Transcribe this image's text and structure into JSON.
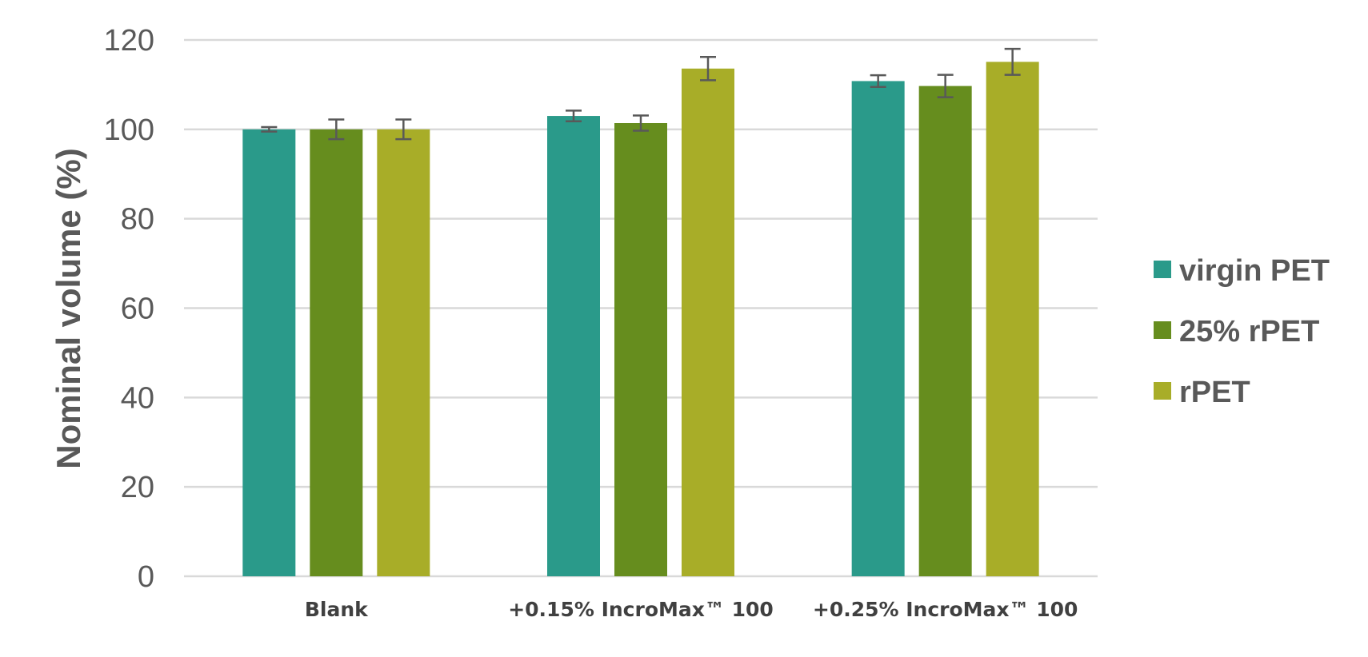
{
  "chart_data": {
    "type": "bar",
    "title": "",
    "xlabel": "",
    "ylabel": "Nominal volume (%)",
    "ylim": [
      0,
      120
    ],
    "yticks": [
      0,
      20,
      40,
      60,
      80,
      100,
      120
    ],
    "grid": true,
    "legend_position": "right",
    "categories": [
      "Blank",
      "+0.15% IncroMax™ 100",
      "+0.25% IncroMax™ 100"
    ],
    "series": [
      {
        "name": "virgin PET",
        "color": "#2a9a8a",
        "values": [
          100,
          103,
          110.8
        ],
        "errors": [
          0.5,
          1.2,
          1.3
        ]
      },
      {
        "name": "25% rPET",
        "color": "#668d1e",
        "values": [
          100,
          101.4,
          109.7
        ],
        "errors": [
          2.2,
          1.7,
          2.5
        ]
      },
      {
        "name": "rPET",
        "color": "#a8ad28",
        "values": [
          100,
          113.6,
          115.1
        ],
        "errors": [
          2.2,
          2.6,
          2.9
        ]
      }
    ]
  }
}
